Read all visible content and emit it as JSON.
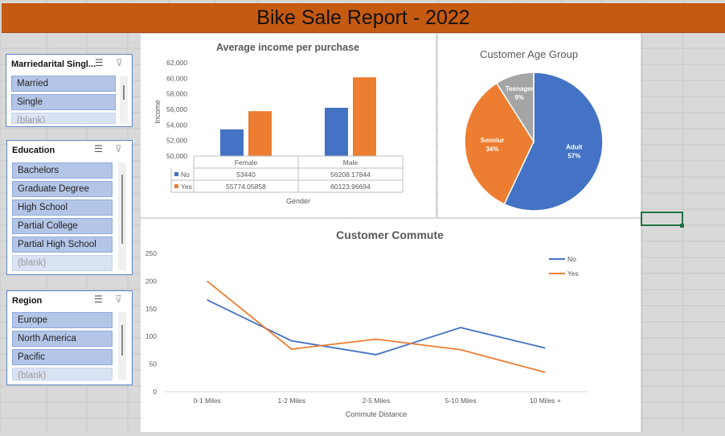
{
  "report": {
    "title": "Bike Sale Report - 2022"
  },
  "slicers": [
    {
      "title": "Marriedarital Singl...",
      "items": [
        "Married",
        "Single",
        "(blank)"
      ]
    },
    {
      "title": "Education",
      "items": [
        "Bachelors",
        "Graduate Degree",
        "High School",
        "Partial College",
        "Partial High School",
        "(blank)"
      ]
    },
    {
      "title": "Region",
      "items": [
        "Europe",
        "North America",
        "Pacific",
        "(blank)"
      ]
    }
  ],
  "income_chart": {
    "title": "Average income per purchase",
    "ylabel": "Income",
    "xlabel": "Gender",
    "table_rows": [
      {
        "label": "No",
        "female": "53440",
        "male": "56208.17844"
      },
      {
        "label": "Yes",
        "female": "55774.05858",
        "male": "60123.96694"
      }
    ]
  },
  "age_chart": {
    "title": "Customer Age Group"
  },
  "commute_chart": {
    "title": "Customer Commute",
    "xlabel": "Commute Distance"
  },
  "chart_data": [
    {
      "type": "bar",
      "title": "Average income per purchase",
      "xlabel": "Gender",
      "ylabel": "Income",
      "categories": [
        "Female",
        "Male"
      ],
      "series": [
        {
          "name": "No",
          "color": "#4472c4",
          "values": [
            53440,
            56208.17844
          ]
        },
        {
          "name": "Yes",
          "color": "#ed7d31",
          "values": [
            55774.05858,
            60123.96694
          ]
        }
      ],
      "ylim": [
        50000,
        62000
      ],
      "yticks": [
        50000,
        52000,
        54000,
        56000,
        58000,
        60000,
        62000
      ],
      "ytick_labels": [
        "50,000",
        "52,000",
        "54,000",
        "56,000",
        "58,000",
        "60,000",
        "62,000"
      ],
      "legend": "data-table"
    },
    {
      "type": "pie",
      "title": "Customer Age Group",
      "slices": [
        {
          "label": "Adult",
          "percent": 57,
          "pct_label": "57%",
          "color": "#4472c4"
        },
        {
          "label": "Senoiur",
          "percent": 34,
          "pct_label": "34%",
          "color": "#ed7d31"
        },
        {
          "label": "Teenager",
          "percent": 9,
          "pct_label": "9%",
          "color": "#a5a5a5"
        }
      ]
    },
    {
      "type": "line",
      "title": "Customer Commute",
      "xlabel": "Commute Distance",
      "categories": [
        "0-1 Miles",
        "1-2 Miles",
        "2-5 Miles",
        "5-10 Miles",
        "10 Miles +"
      ],
      "series": [
        {
          "name": "No",
          "color": "#4472c4",
          "values": [
            166,
            92,
            67,
            116,
            79
          ]
        },
        {
          "name": "Yes",
          "color": "#ed7d31",
          "values": [
            200,
            77,
            95,
            76,
            35
          ]
        }
      ],
      "ylim": [
        0,
        250
      ],
      "yticks": [
        0,
        50,
        100,
        150,
        200,
        250
      ],
      "legend": "top-right"
    }
  ]
}
